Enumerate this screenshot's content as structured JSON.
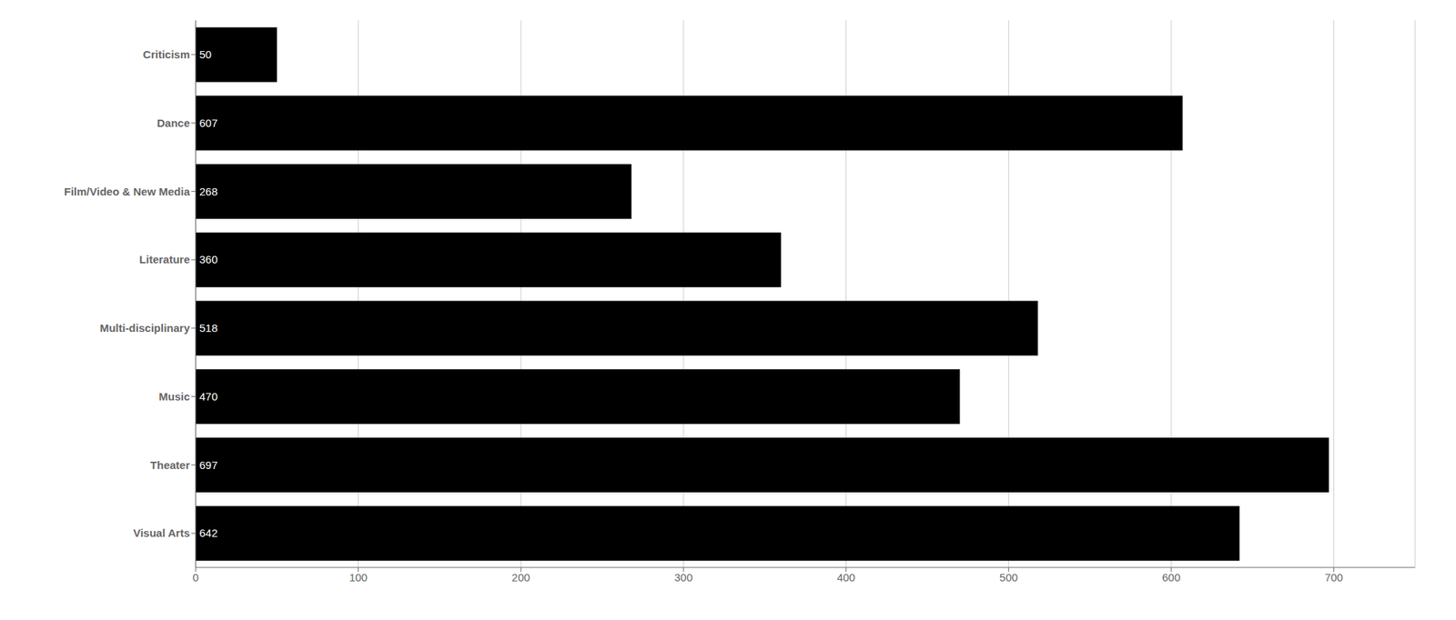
{
  "chart_data": {
    "type": "bar",
    "orientation": "horizontal",
    "categories": [
      "Criticism",
      "Dance",
      "Film/Video & New Media",
      "Literature",
      "Multi-disciplinary",
      "Music",
      "Theater",
      "Visual Arts"
    ],
    "values": [
      50,
      607,
      268,
      360,
      518,
      470,
      697,
      642
    ],
    "color": "#000000",
    "xlim": [
      0,
      750
    ],
    "xticks": [
      0,
      100,
      200,
      300,
      400,
      500,
      600,
      700
    ],
    "grid": true,
    "data_labels": true
  }
}
